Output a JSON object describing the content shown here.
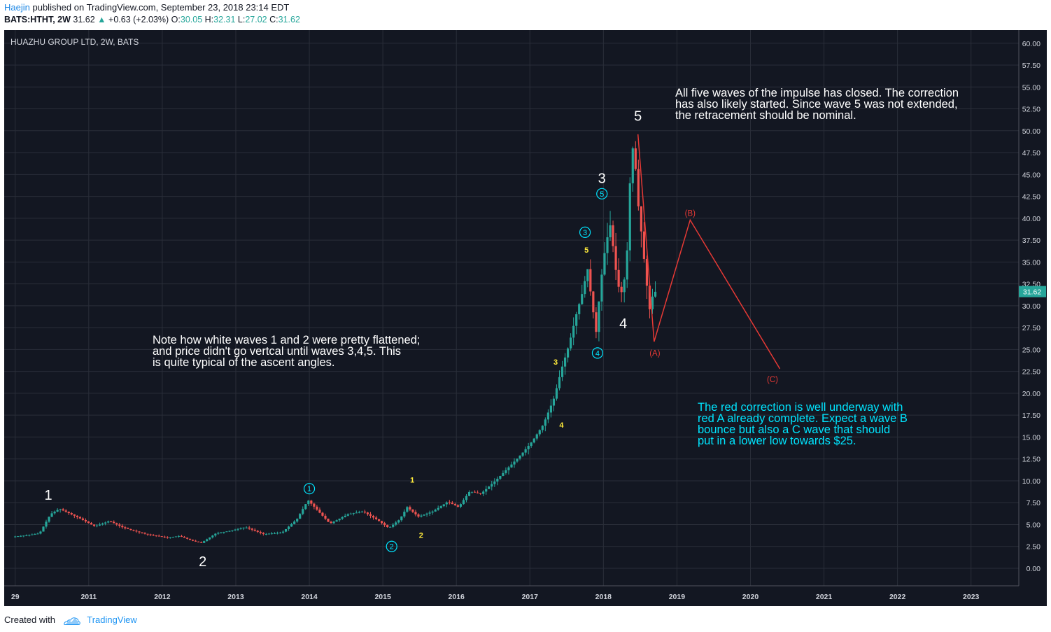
{
  "header": {
    "author": "Haejin",
    "published_text": "published on TradingView.com, September 23, 2018 23:14 EDT",
    "symbol_line": {
      "symbol": "BATS:HTHT, 2W",
      "last": "31.62",
      "change_arrow": "▲",
      "change": "+0.63 (+2.03%)",
      "o_label": "O:",
      "o": "30.05",
      "h_label": "H:",
      "h": "32.31",
      "l_label": "L:",
      "l": "27.02",
      "c_label": "C:",
      "c": "31.62"
    }
  },
  "chart_title": "HUAZHU GROUP LTD, 2W, BATS",
  "price_badge": "31.62",
  "footer": {
    "created_with": "Created with",
    "brand": "TradingView",
    "logo_icon": "tradingview-cloud-icon"
  },
  "colors": {
    "background": "#131722",
    "up": "#26a69a",
    "down": "#ef5350",
    "cyan": "#00e5ff",
    "yellow": "#ffeb3b",
    "red_projection": "#e53935"
  },
  "notes": {
    "note1": [
      "Note how white waves 1 and 2 were pretty flattened;",
      "and price didn't go vertcal until waves 3,4,5. This",
      "is quite typical of the ascent angles."
    ],
    "note2": [
      "All five waves of the impulse has closed. The correction",
      "has also likely started. Since wave 5 was not extended,",
      "the retracement should be nominal."
    ],
    "note3": [
      "The red correction is well underway with",
      "red A already complete. Expect a wave B",
      "bounce but also a C wave that should",
      "put in a lower low towards $25."
    ]
  },
  "chart_data": {
    "type": "candlestick",
    "title": "HUAZHU GROUP LTD, 2W, BATS",
    "ylim": [
      -2,
      61.5
    ],
    "xlim": [
      2009.85,
      2023.65
    ],
    "y_ticks": [
      "60.00",
      "57.50",
      "55.00",
      "52.50",
      "50.00",
      "47.50",
      "45.00",
      "42.50",
      "40.00",
      "37.50",
      "35.00",
      "32.50",
      "30.00",
      "27.50",
      "25.00",
      "22.50",
      "20.00",
      "17.50",
      "15.00",
      "12.50",
      "10.00",
      "7.50",
      "5.00",
      "2.50",
      "0.00"
    ],
    "x_ticks": [
      {
        "label": "29",
        "t": 2010.0
      },
      {
        "label": "2011",
        "t": 2011.0
      },
      {
        "label": "2012",
        "t": 2012.0
      },
      {
        "label": "2013",
        "t": 2013.0
      },
      {
        "label": "2014",
        "t": 2014.0
      },
      {
        "label": "2015",
        "t": 2015.0
      },
      {
        "label": "2016",
        "t": 2016.0
      },
      {
        "label": "2017",
        "t": 2017.0
      },
      {
        "label": "2018",
        "t": 2018.0
      },
      {
        "label": "2019",
        "t": 2019.0
      },
      {
        "label": "2020",
        "t": 2020.0
      },
      {
        "label": "2021",
        "t": 2021.0
      },
      {
        "label": "2022",
        "t": 2022.0
      },
      {
        "label": "2023",
        "t": 2023.0
      }
    ],
    "price_anchors": [
      [
        2009.98,
        3.6
      ],
      [
        2010.2,
        3.8
      ],
      [
        2010.35,
        4.0
      ],
      [
        2010.5,
        6.2
      ],
      [
        2010.62,
        6.8
      ],
      [
        2010.75,
        6.3
      ],
      [
        2010.9,
        5.7
      ],
      [
        2011.1,
        4.8
      ],
      [
        2011.3,
        5.4
      ],
      [
        2011.5,
        4.6
      ],
      [
        2011.8,
        3.9
      ],
      [
        2012.1,
        3.5
      ],
      [
        2012.25,
        3.7
      ],
      [
        2012.45,
        3.1
      ],
      [
        2012.55,
        2.9
      ],
      [
        2012.75,
        4.0
      ],
      [
        2012.95,
        4.3
      ],
      [
        2013.15,
        4.7
      ],
      [
        2013.4,
        3.9
      ],
      [
        2013.65,
        4.1
      ],
      [
        2013.85,
        5.6
      ],
      [
        2014.0,
        7.8
      ],
      [
        2014.1,
        6.9
      ],
      [
        2014.3,
        5.1
      ],
      [
        2014.55,
        6.2
      ],
      [
        2014.75,
        6.5
      ],
      [
        2014.95,
        5.5
      ],
      [
        2015.1,
        4.6
      ],
      [
        2015.25,
        5.6
      ],
      [
        2015.35,
        7.0
      ],
      [
        2015.5,
        5.9
      ],
      [
        2015.7,
        6.5
      ],
      [
        2015.9,
        7.6
      ],
      [
        2016.05,
        7.0
      ],
      [
        2016.2,
        8.8
      ],
      [
        2016.35,
        8.5
      ],
      [
        2016.55,
        10.0
      ],
      [
        2016.75,
        11.7
      ],
      [
        2016.9,
        13.0
      ],
      [
        2017.05,
        14.5
      ],
      [
        2017.2,
        16.4
      ],
      [
        2017.35,
        19.5
      ],
      [
        2017.45,
        22.8
      ],
      [
        2017.55,
        25.5
      ],
      [
        2017.65,
        29.0
      ],
      [
        2017.75,
        32.0
      ],
      [
        2017.8,
        34.5
      ],
      [
        2017.86,
        30.5
      ],
      [
        2017.92,
        27.0
      ],
      [
        2017.98,
        32.5
      ],
      [
        2018.05,
        37.0
      ],
      [
        2018.12,
        39.5
      ],
      [
        2018.17,
        35.0
      ],
      [
        2018.25,
        31.0
      ],
      [
        2018.33,
        34.0
      ],
      [
        2018.38,
        44.0
      ],
      [
        2018.43,
        49.2
      ],
      [
        2018.48,
        42.5
      ],
      [
        2018.54,
        38.0
      ],
      [
        2018.6,
        33.0
      ],
      [
        2018.65,
        29.5
      ],
      [
        2018.7,
        31.6
      ]
    ],
    "red_projection": [
      [
        2018.47,
        49.6
      ],
      [
        2018.69,
        25.9
      ],
      [
        2019.18,
        39.8
      ],
      [
        2020.4,
        22.8
      ]
    ],
    "elliott_labels": [
      {
        "text": "1",
        "t": 2010.45,
        "price": 8.4,
        "style": "white-big"
      },
      {
        "text": "2",
        "t": 2012.55,
        "price": 0.8,
        "style": "white-big"
      },
      {
        "text": "3",
        "t": 2017.98,
        "price": 44.6,
        "style": "white-big"
      },
      {
        "text": "4",
        "t": 2018.27,
        "price": 28.0,
        "style": "white-big"
      },
      {
        "text": "5",
        "t": 2018.47,
        "price": 51.7,
        "style": "white-big"
      },
      {
        "text": "1",
        "t": 2014.0,
        "price": 9.1,
        "style": "cyan-circle"
      },
      {
        "text": "2",
        "t": 2015.12,
        "price": 2.5,
        "style": "cyan-circle"
      },
      {
        "text": "3",
        "t": 2017.75,
        "price": 38.4,
        "style": "cyan-circle"
      },
      {
        "text": "4",
        "t": 2017.92,
        "price": 24.6,
        "style": "cyan-circle"
      },
      {
        "text": "5",
        "t": 2017.98,
        "price": 42.8,
        "style": "cyan-circle"
      },
      {
        "text": "1",
        "t": 2015.4,
        "price": 10.1,
        "style": "yellow"
      },
      {
        "text": "2",
        "t": 2015.52,
        "price": 3.8,
        "style": "yellow"
      },
      {
        "text": "3",
        "t": 2017.35,
        "price": 23.6,
        "style": "yellow"
      },
      {
        "text": "4",
        "t": 2017.43,
        "price": 16.4,
        "style": "yellow"
      },
      {
        "text": "5",
        "t": 2017.77,
        "price": 36.4,
        "style": "yellow"
      },
      {
        "text": "(A)",
        "t": 2018.7,
        "price": 24.6,
        "style": "red"
      },
      {
        "text": "(B)",
        "t": 2019.18,
        "price": 40.6,
        "style": "red"
      },
      {
        "text": "(C)",
        "t": 2020.3,
        "price": 21.6,
        "style": "red"
      }
    ]
  }
}
